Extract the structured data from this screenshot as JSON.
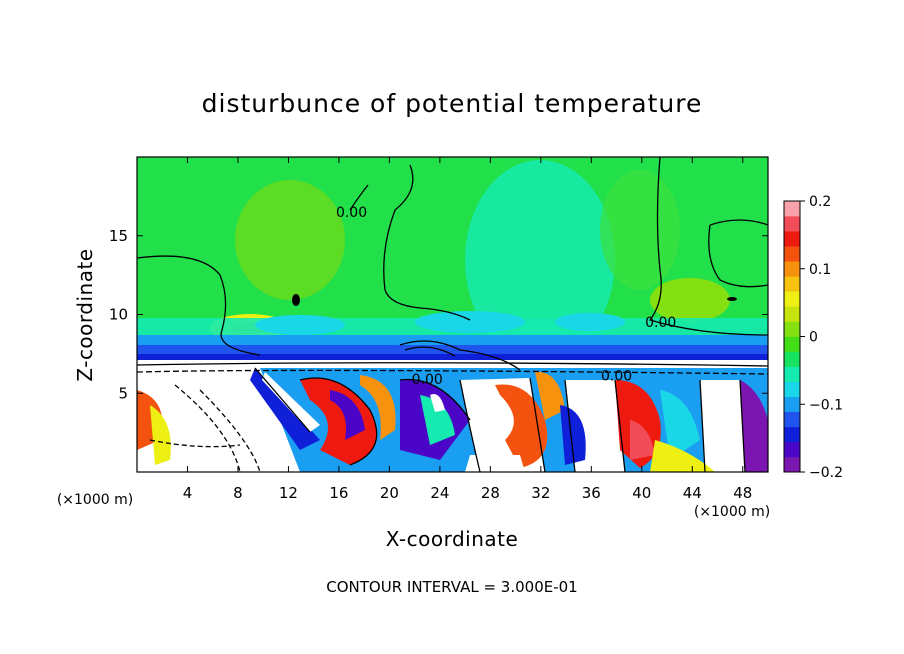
{
  "chart_data": {
    "type": "heatmap",
    "title": "disturbunce of potential temperature",
    "xlabel": "X-coordinate",
    "ylabel": "Z-coordinate",
    "x_unit": "(×1000 m)",
    "x_unit_right": "(×1000 m)",
    "xlim": [
      0,
      50
    ],
    "ylim": [
      0,
      20
    ],
    "x_ticks": [
      4,
      8,
      12,
      16,
      20,
      24,
      28,
      32,
      36,
      40,
      44,
      48
    ],
    "y_ticks": [
      5,
      10,
      15
    ],
    "colorbar": {
      "range": [
        -0.2,
        0.2
      ],
      "ticks": [
        "0.2",
        "0.1",
        "0",
        "−0.1",
        "−0.2"
      ],
      "tick_values": [
        0.2,
        0.1,
        0,
        -0.1,
        -0.2
      ],
      "colors": [
        "#7b16b0",
        "#4a05c6",
        "#1020d8",
        "#1f55ee",
        "#1a9ef2",
        "#1ad7e8",
        "#15eab0",
        "#16e25f",
        "#42dd15",
        "#84e010",
        "#c6e40c",
        "#eeef12",
        "#f6c410",
        "#f7920d",
        "#f4520f",
        "#ee1a10",
        "#f24c58",
        "#f7a2a8"
      ]
    },
    "contour_labels": [
      {
        "text": "0.00",
        "x": 17,
        "y": 16.2
      },
      {
        "text": "0.00",
        "x": 41.5,
        "y": 9.2
      },
      {
        "text": "0.00",
        "x": 23,
        "y": 5.6
      },
      {
        "text": "0.00",
        "x": 38,
        "y": 5.8
      }
    ],
    "footer": "CONTOUR INTERVAL = 3.000E-01"
  }
}
